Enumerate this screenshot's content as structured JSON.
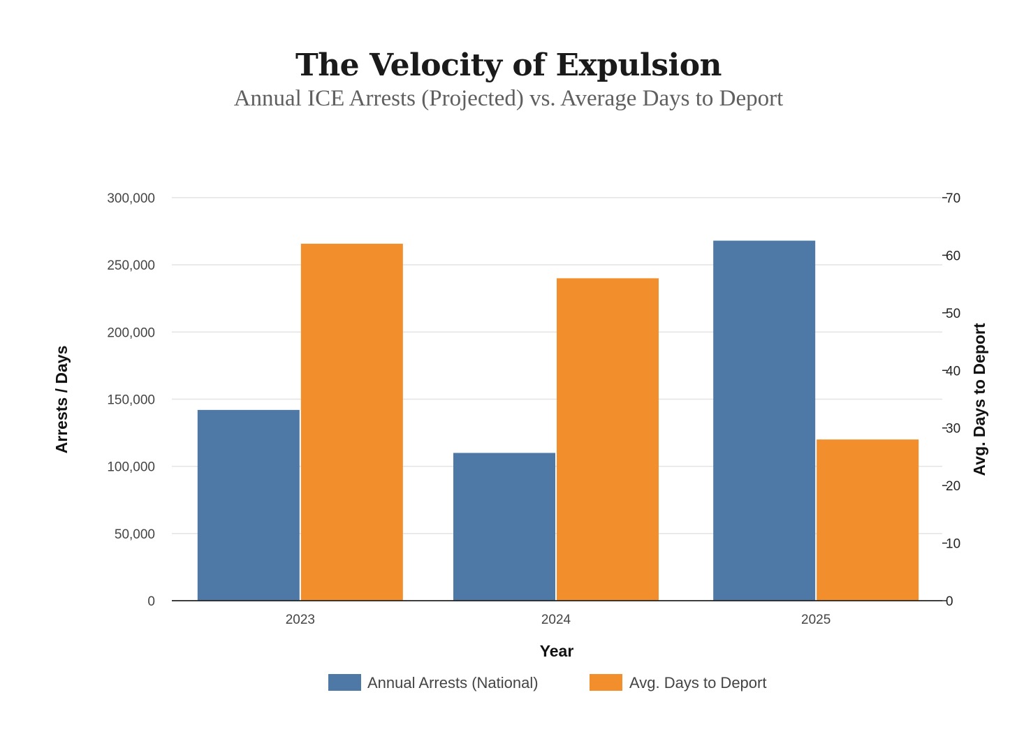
{
  "chart_data": {
    "type": "bar",
    "title": "The Velocity of Expulsion",
    "subtitle": "Annual ICE Arrests (Projected) vs. Average Days to Deport",
    "xlabel": "Year",
    "ylabel": "Arrests / Days",
    "y2label": "Avg. Days to Deport",
    "categories": [
      "2023",
      "2024",
      "2025"
    ],
    "ylim": [
      0,
      300000
    ],
    "y2lim": [
      0,
      70
    ],
    "yticks": [
      "0",
      "50,000",
      "100,000",
      "150,000",
      "200,000",
      "250,000",
      "300,000"
    ],
    "yticks_values": [
      0,
      50000,
      100000,
      150000,
      200000,
      250000,
      300000
    ],
    "y2ticks": [
      "0",
      "10",
      "20",
      "30",
      "40",
      "50",
      "60",
      "70"
    ],
    "y2ticks_values": [
      0,
      10,
      20,
      30,
      40,
      50,
      60,
      70
    ],
    "grid": true,
    "legend_position": "bottom-center",
    "series": [
      {
        "name": "Annual Arrests (National)",
        "axis": "left",
        "color": "#4e79a7",
        "values": [
          142000,
          110000,
          268000
        ]
      },
      {
        "name": "Avg. Days to Deport",
        "axis": "right",
        "color": "#f28e2b",
        "values": [
          62,
          56,
          28
        ]
      }
    ]
  }
}
